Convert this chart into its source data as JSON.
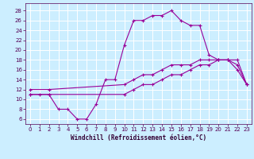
{
  "xlabel": "Windchill (Refroidissement éolien,°C)",
  "bg_color": "#cceeff",
  "line_color": "#990099",
  "grid_color": "#ffffff",
  "xlim": [
    -0.5,
    23.5
  ],
  "ylim": [
    5,
    29.5
  ],
  "xticks": [
    0,
    1,
    2,
    3,
    4,
    5,
    6,
    7,
    8,
    9,
    10,
    11,
    12,
    13,
    14,
    15,
    16,
    17,
    18,
    19,
    20,
    21,
    22,
    23
  ],
  "yticks": [
    6,
    8,
    10,
    12,
    14,
    16,
    18,
    20,
    22,
    24,
    26,
    28
  ],
  "line1_x": [
    0,
    1,
    2,
    3,
    4,
    5,
    6,
    7,
    8,
    9,
    10,
    11,
    12,
    13,
    14,
    15,
    16,
    17,
    18,
    19,
    20,
    21,
    22,
    23
  ],
  "line1_y": [
    11,
    11,
    11,
    8,
    8,
    6,
    6,
    9,
    14,
    14,
    21,
    26,
    26,
    27,
    27,
    28,
    26,
    25,
    25,
    19,
    18,
    18,
    16,
    13
  ],
  "line2_x": [
    0,
    2,
    10,
    11,
    12,
    13,
    14,
    15,
    16,
    17,
    18,
    19,
    20,
    21,
    22,
    23
  ],
  "line2_y": [
    12,
    12,
    13,
    14,
    15,
    15,
    16,
    17,
    17,
    17,
    18,
    18,
    18,
    18,
    18,
    13
  ],
  "line3_x": [
    0,
    2,
    10,
    11,
    12,
    13,
    14,
    15,
    16,
    17,
    18,
    19,
    20,
    21,
    22,
    23
  ],
  "line3_y": [
    11,
    11,
    11,
    12,
    13,
    13,
    14,
    15,
    15,
    16,
    17,
    17,
    18,
    18,
    17,
    13
  ]
}
